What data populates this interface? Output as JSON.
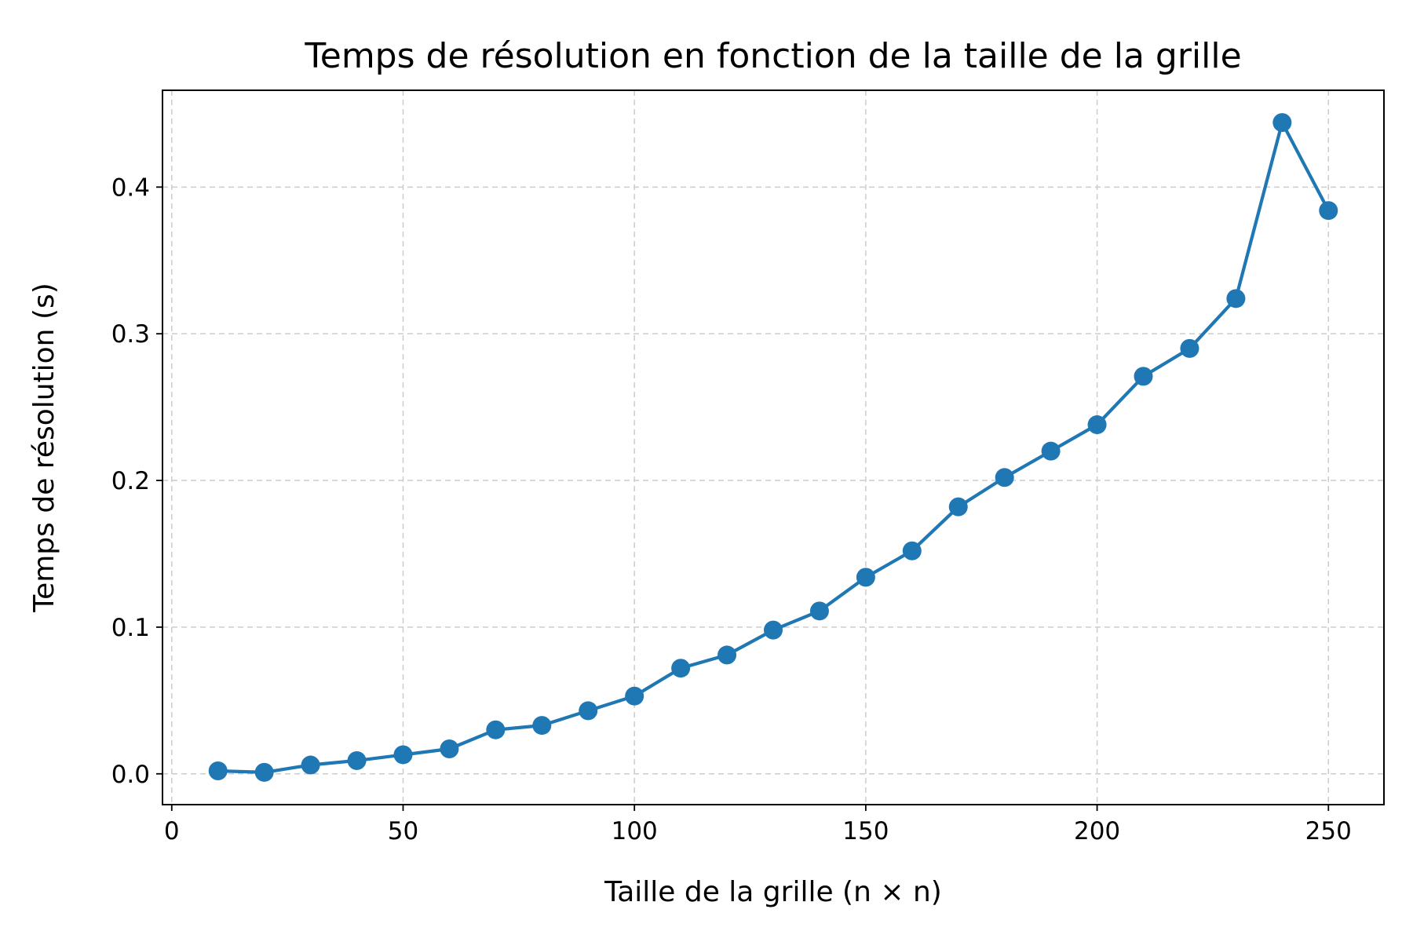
{
  "chart_data": {
    "type": "line",
    "title": "Temps de résolution en fonction de la taille de la grille",
    "xlabel": "Taille de la grille (n × n)",
    "ylabel": "Temps de résolution (s)",
    "xlim": [
      -2,
      262
    ],
    "ylim": [
      -0.021,
      0.466
    ],
    "xticks": [
      0,
      50,
      100,
      150,
      200,
      250
    ],
    "xtick_labels": [
      "0",
      "50",
      "100",
      "150",
      "200",
      "250"
    ],
    "yticks": [
      0.0,
      0.1,
      0.2,
      0.3,
      0.4
    ],
    "ytick_labels": [
      "0.0",
      "0.1",
      "0.2",
      "0.3",
      "0.4"
    ],
    "grid": true,
    "series": [
      {
        "color": "#1f77b4",
        "marker": "circle",
        "x": [
          10,
          20,
          30,
          40,
          50,
          60,
          70,
          80,
          90,
          100,
          110,
          120,
          130,
          140,
          150,
          160,
          170,
          180,
          190,
          200,
          210,
          220,
          230,
          240,
          250
        ],
        "y": [
          0.002,
          0.001,
          0.006,
          0.009,
          0.013,
          0.017,
          0.03,
          0.033,
          0.043,
          0.053,
          0.072,
          0.081,
          0.098,
          0.111,
          0.134,
          0.152,
          0.182,
          0.202,
          0.22,
          0.238,
          0.271,
          0.29,
          0.324,
          0.444,
          0.384
        ]
      }
    ]
  }
}
